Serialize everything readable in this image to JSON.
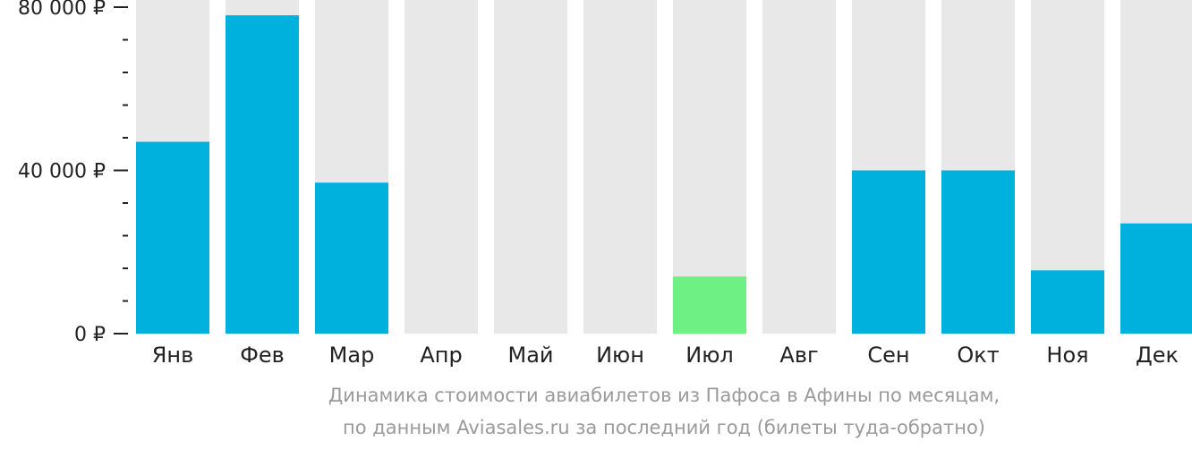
{
  "chart_data": {
    "type": "bar",
    "categories": [
      "Янв",
      "Фев",
      "Мар",
      "Апр",
      "Май",
      "Июн",
      "Июл",
      "Авг",
      "Сен",
      "Окт",
      "Ноя",
      "Дек"
    ],
    "values": [
      47000,
      78000,
      37000,
      null,
      null,
      null,
      14000,
      null,
      40000,
      40000,
      15500,
      27000
    ],
    "highlight_category": "Июл",
    "ylim": [
      0,
      80000
    ],
    "yticks": [
      {
        "value": 0,
        "label": "0 ₽"
      },
      {
        "value": 40000,
        "label": "40 000 ₽"
      },
      {
        "value": 80000,
        "label": "80 000 ₽"
      }
    ],
    "minor_tick_step": 8000,
    "caption_line1": "Динамика стоимости авиабилетов из Пафоса в Афины по месяцам,",
    "caption_line2": "по данным Aviasales.ru за последний год (билеты туда-обратно)",
    "colors": {
      "bar": "#00b0dd",
      "highlight": "#6ef084",
      "track": "#e8e8e8",
      "axis": "#222222"
    }
  }
}
